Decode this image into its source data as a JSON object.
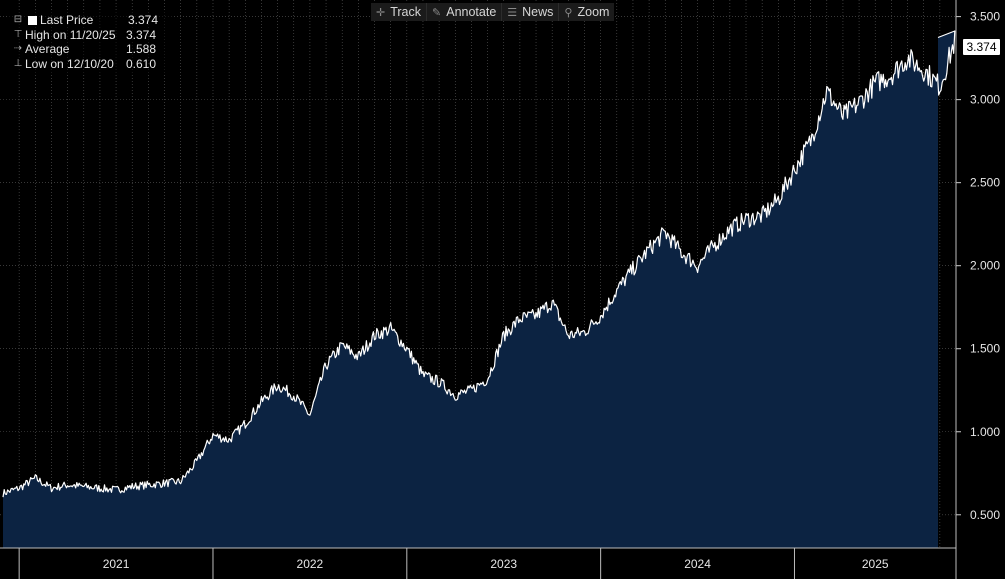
{
  "toolbar": {
    "track_label": "Track",
    "annotate_label": "Annotate",
    "news_label": "News",
    "zoom_label": "Zoom"
  },
  "legend": {
    "last_price": {
      "label": "Last Price",
      "value": "3.374"
    },
    "high": {
      "label": "High on 11/20/25",
      "value": "3.374"
    },
    "average": {
      "label": "Average",
      "value": "1.588"
    },
    "low": {
      "label": "Low on 12/10/20",
      "value": "0.610"
    }
  },
  "last_value_tag": "3.374",
  "colors": {
    "background": "#000000",
    "area_fill": "#0c2342",
    "line": "#ffffff",
    "grid": "#5a5a5a",
    "axis_text": "#e6e6e6"
  },
  "chart_data": {
    "type": "area",
    "title": "",
    "xlabel": "",
    "ylabel": "",
    "x_tick_labels": [
      "2021",
      "2022",
      "2023",
      "2024",
      "2025"
    ],
    "y_tick_labels": [
      "0.500",
      "1.000",
      "1.500",
      "2.000",
      "2.500",
      "3.000",
      "3.500"
    ],
    "x_range": [
      "2020-12",
      "2025-11"
    ],
    "ylim": [
      0.3,
      3.6
    ],
    "grid": true,
    "legend_position": "top-left",
    "axis_position": "right",
    "series": [
      {
        "name": "Last Price",
        "x": [
          "2020-12",
          "2021-01",
          "2021-02",
          "2021-03",
          "2021-04",
          "2021-05",
          "2021-06",
          "2021-07",
          "2021-08",
          "2021-09",
          "2021-10",
          "2021-11",
          "2021-12",
          "2022-01",
          "2022-02",
          "2022-03",
          "2022-04",
          "2022-05",
          "2022-06",
          "2022-07",
          "2022-08",
          "2022-09",
          "2022-10",
          "2022-11",
          "2022-12",
          "2023-01",
          "2023-02",
          "2023-03",
          "2023-04",
          "2023-05",
          "2023-06",
          "2023-07",
          "2023-08",
          "2023-09",
          "2023-10",
          "2023-11",
          "2023-12",
          "2024-01",
          "2024-02",
          "2024-03",
          "2024-04",
          "2024-05",
          "2024-06",
          "2024-07",
          "2024-08",
          "2024-09",
          "2024-10",
          "2024-11",
          "2024-12",
          "2025-01",
          "2025-02",
          "2025-03",
          "2025-04",
          "2025-05",
          "2025-06",
          "2025-07",
          "2025-08",
          "2025-09",
          "2025-10",
          "2025-11"
        ],
        "values": [
          0.63,
          0.66,
          0.72,
          0.66,
          0.68,
          0.67,
          0.66,
          0.65,
          0.67,
          0.68,
          0.69,
          0.7,
          0.82,
          0.98,
          0.95,
          1.05,
          1.18,
          1.28,
          1.22,
          1.1,
          1.4,
          1.52,
          1.45,
          1.58,
          1.62,
          1.5,
          1.34,
          1.3,
          1.22,
          1.25,
          1.32,
          1.58,
          1.68,
          1.7,
          1.78,
          1.58,
          1.6,
          1.7,
          1.85,
          1.98,
          2.1,
          2.2,
          2.08,
          2.0,
          2.12,
          2.22,
          2.28,
          2.3,
          2.4,
          2.58,
          2.75,
          3.05,
          2.9,
          2.98,
          3.1,
          3.15,
          3.25,
          3.18,
          3.08,
          3.374
        ]
      }
    ]
  }
}
